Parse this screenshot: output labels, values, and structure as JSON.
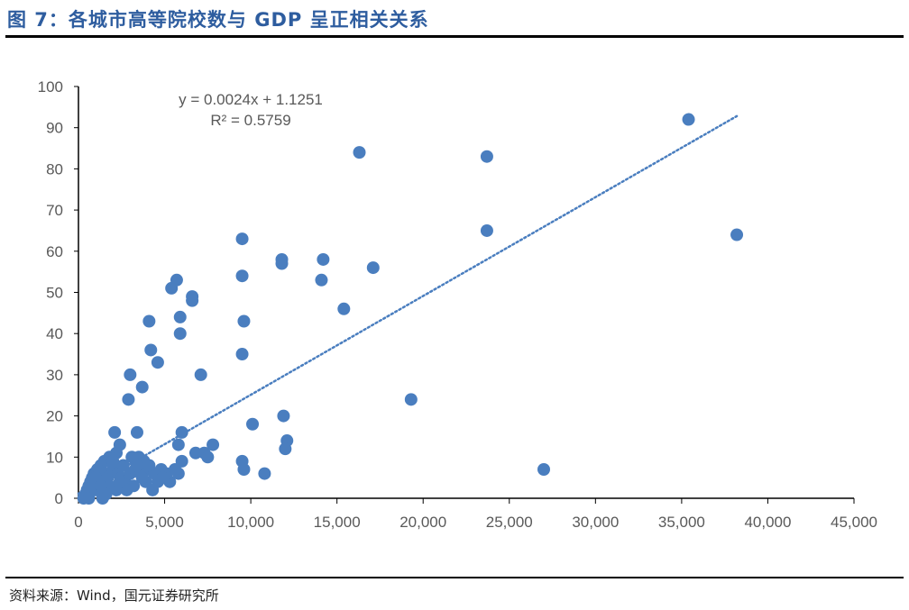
{
  "header": {
    "title": "图 7：各城市高等院校数与 GDP 呈正相关关系"
  },
  "footer": {
    "source": "资料来源：Wind，国元证券研究所"
  },
  "colors": {
    "point": "#4a7ebf",
    "trendline": "#4a7ebf",
    "title": "#2e5d9f",
    "axis": "#000000",
    "tick_text": "#595959"
  },
  "chart_data": {
    "type": "scatter",
    "title": "",
    "xlabel": "",
    "ylabel": "",
    "xlim": [
      0,
      45000
    ],
    "ylim": [
      0,
      100
    ],
    "x_ticks": [
      0,
      5000,
      10000,
      15000,
      20000,
      25000,
      30000,
      35000,
      40000,
      45000
    ],
    "x_tick_labels": [
      "0",
      "5,000",
      "10,000",
      "15,000",
      "20,000",
      "25,000",
      "30,000",
      "35,000",
      "40,000",
      "45,000"
    ],
    "y_ticks": [
      0,
      10,
      20,
      30,
      40,
      50,
      60,
      70,
      80,
      90,
      100
    ],
    "y_tick_labels": [
      "0",
      "10",
      "20",
      "30",
      "40",
      "50",
      "60",
      "70",
      "80",
      "90",
      "100"
    ],
    "grid": false,
    "legend": "none",
    "trendline": {
      "type": "linear",
      "slope": 0.0024,
      "intercept": 1.1251,
      "x_range": [
        0,
        38200
      ],
      "equation_label": "y = 0.0024x + 1.1251",
      "r2_label": "R² = 0.5759"
    },
    "points": [
      {
        "x": 35400,
        "y": 92
      },
      {
        "x": 38200,
        "y": 64
      },
      {
        "x": 16300,
        "y": 84
      },
      {
        "x": 23700,
        "y": 83
      },
      {
        "x": 23700,
        "y": 65
      },
      {
        "x": 27000,
        "y": 7
      },
      {
        "x": 19300,
        "y": 24
      },
      {
        "x": 17100,
        "y": 56
      },
      {
        "x": 14200,
        "y": 58
      },
      {
        "x": 14100,
        "y": 53
      },
      {
        "x": 15400,
        "y": 46
      },
      {
        "x": 11800,
        "y": 58
      },
      {
        "x": 11800,
        "y": 57
      },
      {
        "x": 11900,
        "y": 20
      },
      {
        "x": 12100,
        "y": 14
      },
      {
        "x": 12000,
        "y": 12
      },
      {
        "x": 10800,
        "y": 6
      },
      {
        "x": 9500,
        "y": 63
      },
      {
        "x": 9500,
        "y": 54
      },
      {
        "x": 9600,
        "y": 43
      },
      {
        "x": 9500,
        "y": 35
      },
      {
        "x": 10100,
        "y": 18
      },
      {
        "x": 9500,
        "y": 9
      },
      {
        "x": 9600,
        "y": 7
      },
      {
        "x": 5700,
        "y": 53
      },
      {
        "x": 5400,
        "y": 51
      },
      {
        "x": 6600,
        "y": 49
      },
      {
        "x": 6600,
        "y": 48
      },
      {
        "x": 5900,
        "y": 44
      },
      {
        "x": 5900,
        "y": 40
      },
      {
        "x": 4100,
        "y": 43
      },
      {
        "x": 4200,
        "y": 36
      },
      {
        "x": 4600,
        "y": 33
      },
      {
        "x": 3700,
        "y": 27
      },
      {
        "x": 3000,
        "y": 30
      },
      {
        "x": 2900,
        "y": 24
      },
      {
        "x": 7100,
        "y": 30
      },
      {
        "x": 6000,
        "y": 16
      },
      {
        "x": 3400,
        "y": 16
      },
      {
        "x": 2100,
        "y": 16
      },
      {
        "x": 7800,
        "y": 13
      },
      {
        "x": 5800,
        "y": 13
      },
      {
        "x": 2400,
        "y": 13
      },
      {
        "x": 7300,
        "y": 11
      },
      {
        "x": 6800,
        "y": 11
      },
      {
        "x": 7500,
        "y": 10
      },
      {
        "x": 6000,
        "y": 9
      },
      {
        "x": 5800,
        "y": 6
      },
      {
        "x": 5300,
        "y": 4
      },
      {
        "x": 4300,
        "y": 2
      },
      {
        "x": 3100,
        "y": 10
      },
      {
        "x": 3500,
        "y": 10
      },
      {
        "x": 3800,
        "y": 9
      },
      {
        "x": 2200,
        "y": 11
      },
      {
        "x": 1800,
        "y": 10
      },
      {
        "x": 1500,
        "y": 9
      },
      {
        "x": 1300,
        "y": 8
      },
      {
        "x": 1100,
        "y": 7
      },
      {
        "x": 900,
        "y": 6
      },
      {
        "x": 800,
        "y": 5
      },
      {
        "x": 700,
        "y": 4
      },
      {
        "x": 600,
        "y": 3
      },
      {
        "x": 500,
        "y": 2
      },
      {
        "x": 400,
        "y": 1
      },
      {
        "x": 300,
        "y": 0
      },
      {
        "x": 600,
        "y": 0
      },
      {
        "x": 1400,
        "y": 0
      },
      {
        "x": 1000,
        "y": 2
      },
      {
        "x": 1200,
        "y": 4
      },
      {
        "x": 1500,
        "y": 6
      },
      {
        "x": 1700,
        "y": 5
      },
      {
        "x": 2000,
        "y": 7
      },
      {
        "x": 2300,
        "y": 6
      },
      {
        "x": 2500,
        "y": 5
      },
      {
        "x": 2700,
        "y": 4
      },
      {
        "x": 3000,
        "y": 6
      },
      {
        "x": 3300,
        "y": 7
      },
      {
        "x": 3600,
        "y": 6
      },
      {
        "x": 4000,
        "y": 7
      },
      {
        "x": 4400,
        "y": 6
      },
      {
        "x": 4800,
        "y": 7
      },
      {
        "x": 5100,
        "y": 6
      },
      {
        "x": 4600,
        "y": 4
      },
      {
        "x": 3900,
        "y": 4
      },
      {
        "x": 3200,
        "y": 3
      },
      {
        "x": 2800,
        "y": 2
      },
      {
        "x": 2200,
        "y": 2
      },
      {
        "x": 1800,
        "y": 3
      },
      {
        "x": 1600,
        "y": 1
      },
      {
        "x": 2600,
        "y": 8
      },
      {
        "x": 2000,
        "y": 9
      },
      {
        "x": 3400,
        "y": 8
      },
      {
        "x": 4100,
        "y": 8
      },
      {
        "x": 1000,
        "y": 5
      },
      {
        "x": 800,
        "y": 3
      },
      {
        "x": 1300,
        "y": 3
      },
      {
        "x": 2400,
        "y": 4
      },
      {
        "x": 3700,
        "y": 5
      },
      {
        "x": 4900,
        "y": 5
      },
      {
        "x": 5600,
        "y": 7
      }
    ]
  }
}
